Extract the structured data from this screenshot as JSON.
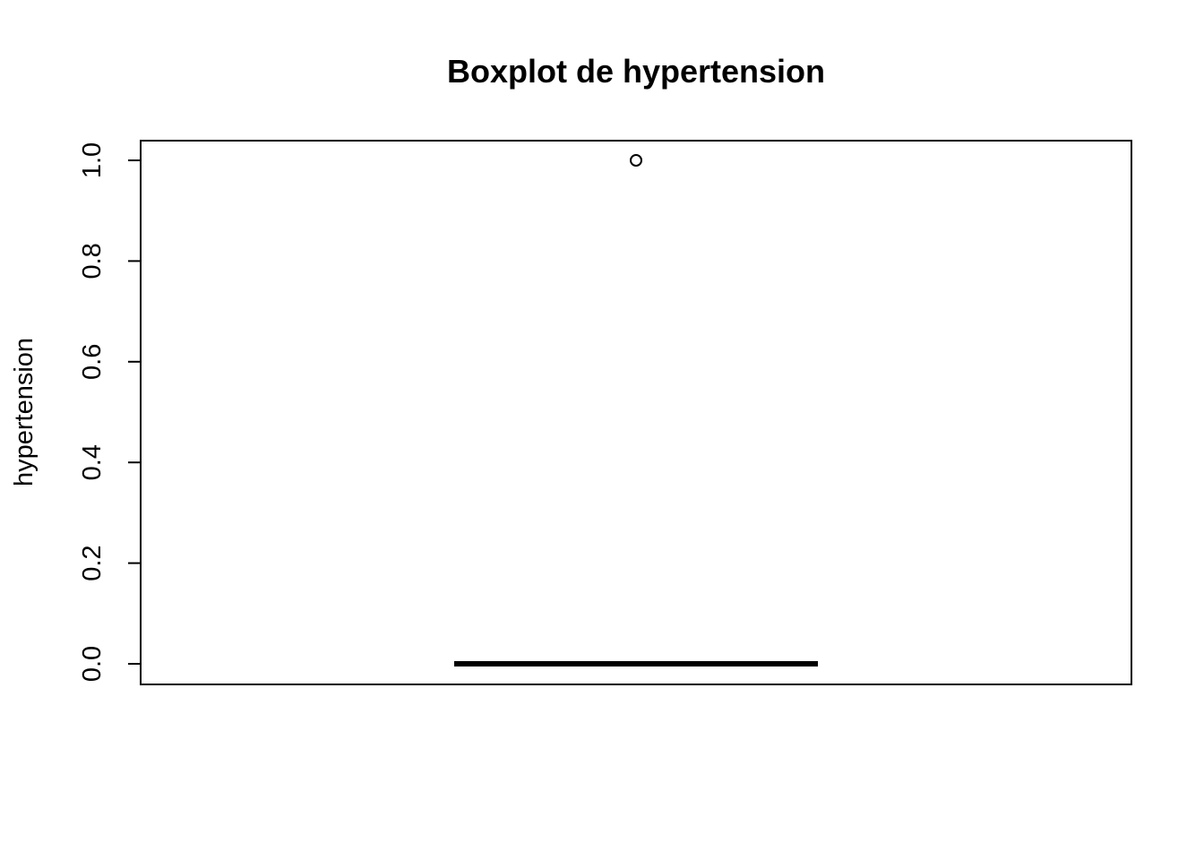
{
  "chart_data": {
    "type": "boxplot",
    "title": "Boxplot de hypertension",
    "xlabel": "",
    "ylabel": "hypertension",
    "ylim": [
      0,
      1
    ],
    "yticks": [
      0.0,
      0.2,
      0.4,
      0.6,
      0.8,
      1.0
    ],
    "ytick_labels": [
      "0.0",
      "0.2",
      "0.4",
      "0.6",
      "0.8",
      "1.0"
    ],
    "grid": false,
    "box": {
      "min": 0,
      "q1": 0,
      "median": 0,
      "q3": 0,
      "max": 0,
      "outliers": [
        1
      ]
    }
  }
}
